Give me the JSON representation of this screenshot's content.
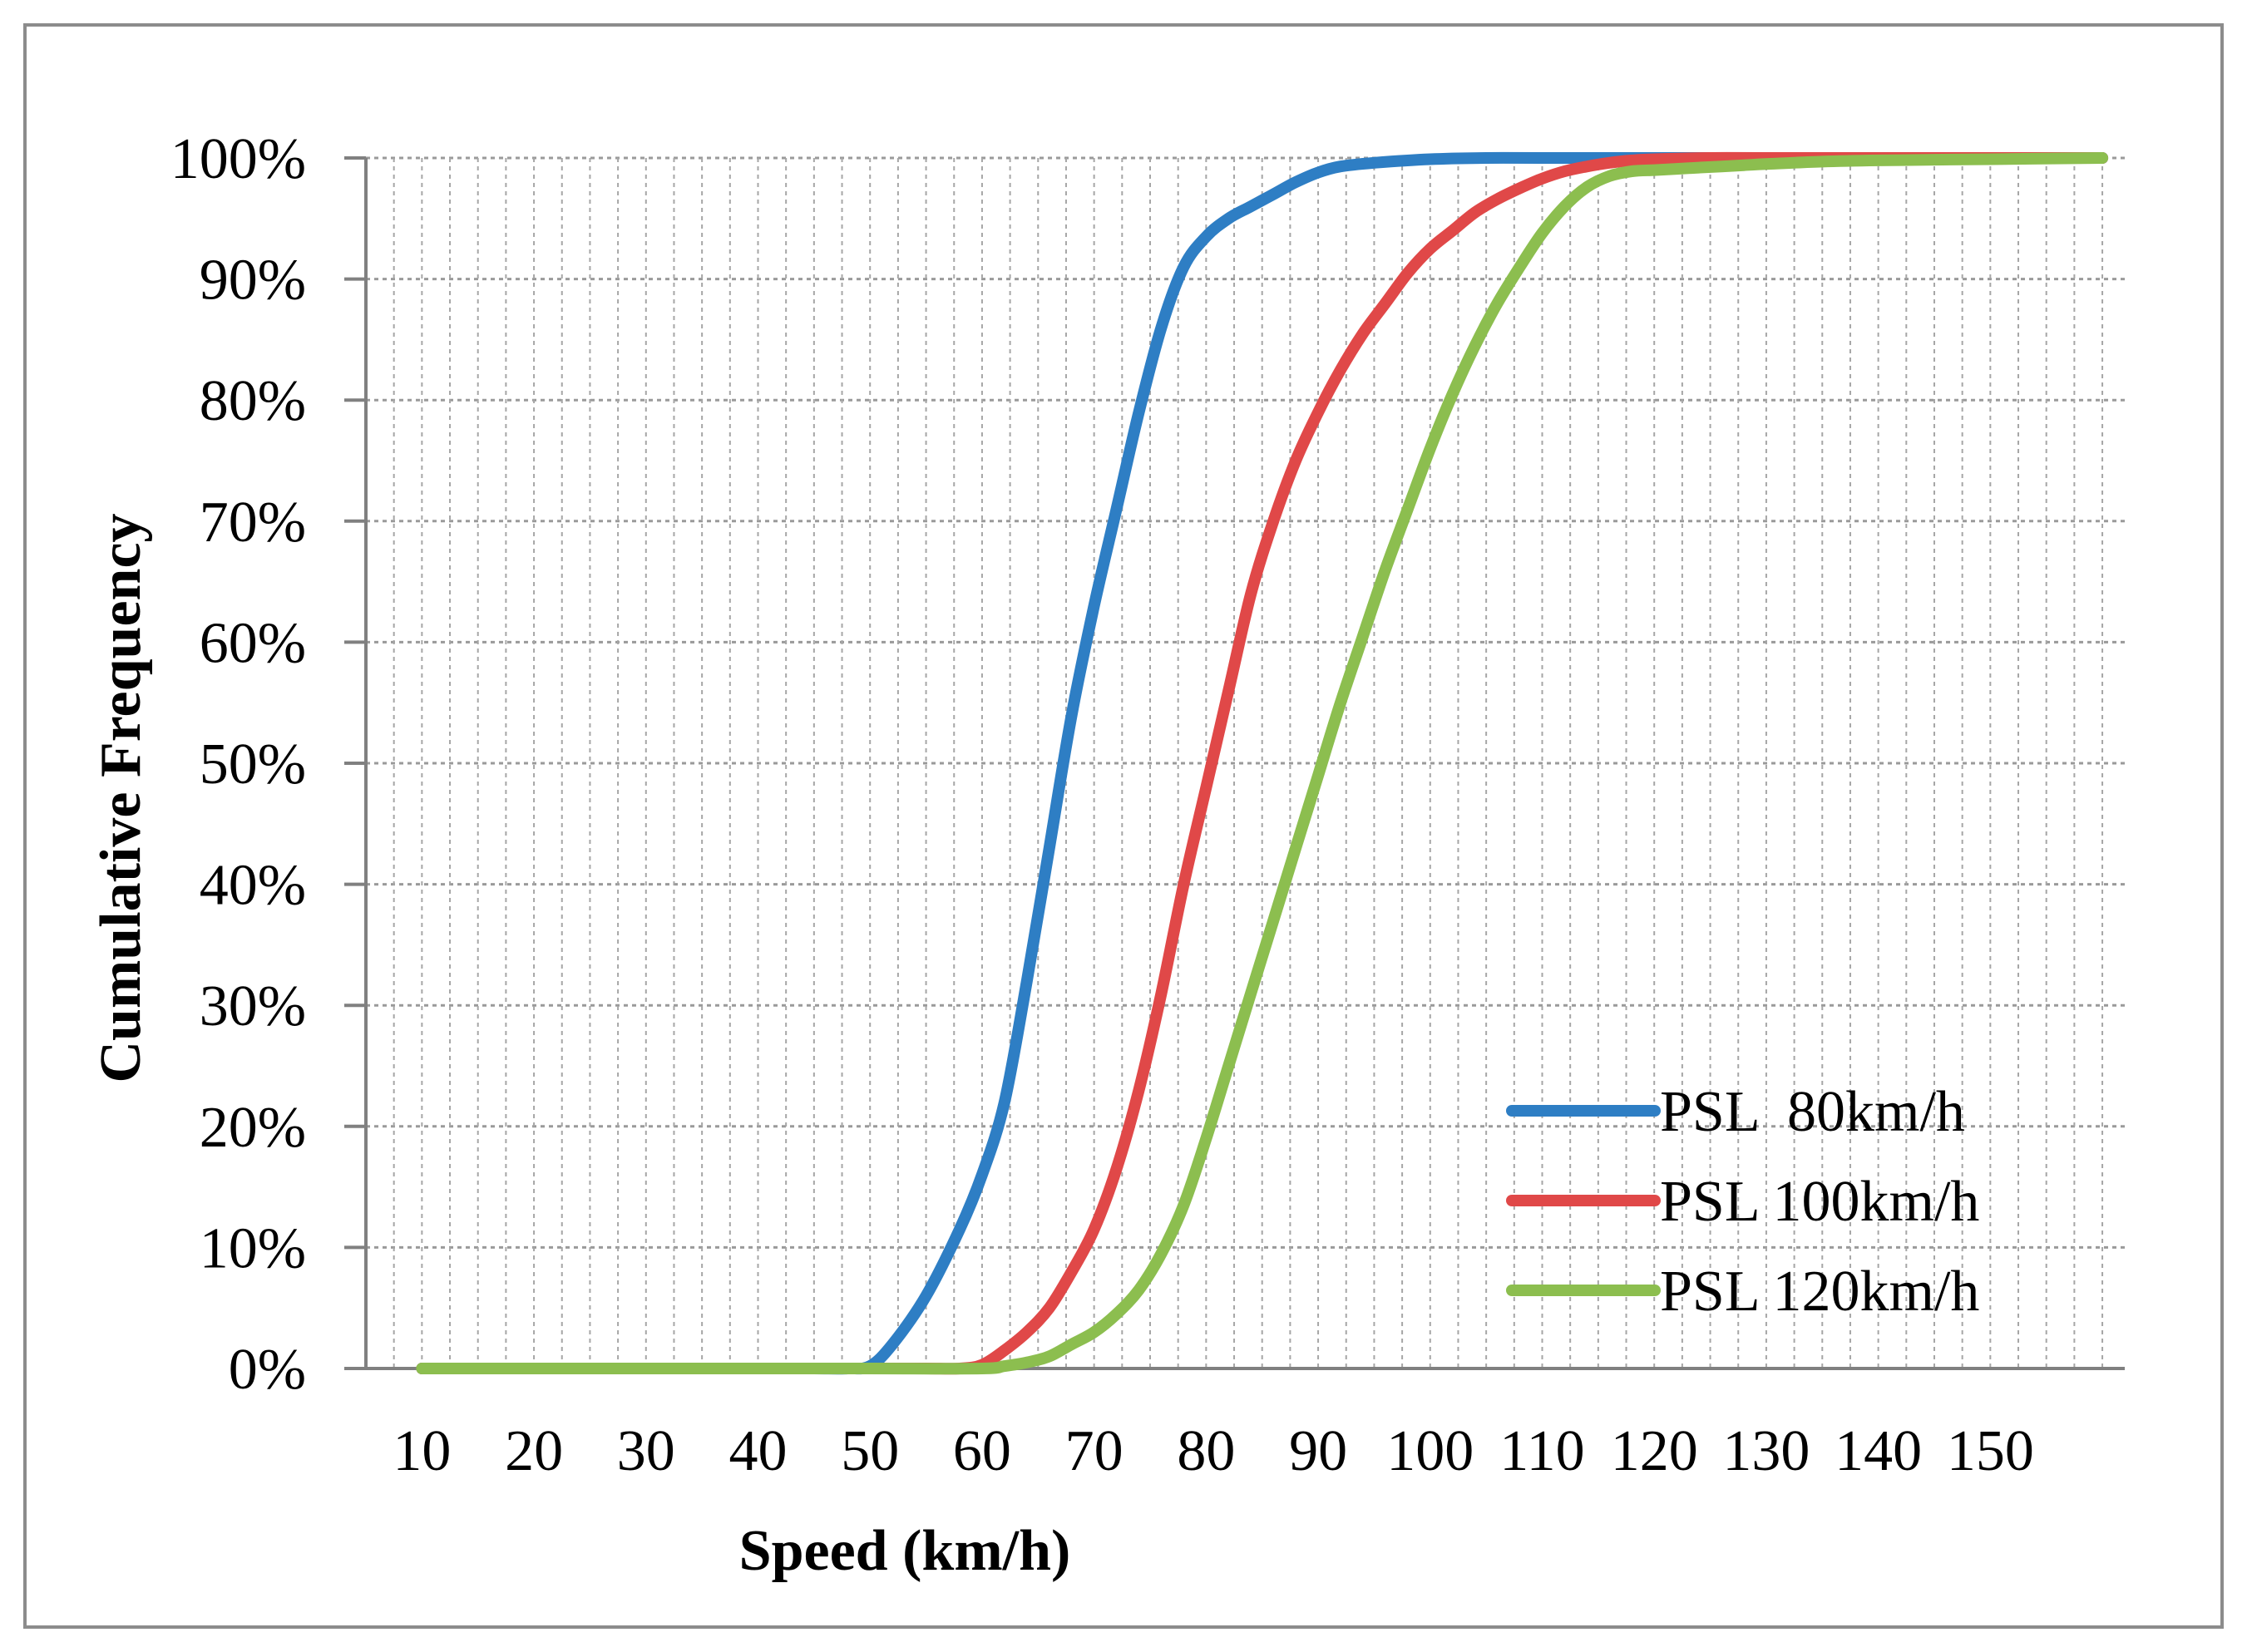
{
  "chart_data": {
    "type": "line",
    "title": "",
    "xlabel": "Speed (km/h)",
    "ylabel": "Cumulative Frequency",
    "x_tick_labels": [
      "10",
      "20",
      "30",
      "40",
      "50",
      "60",
      "70",
      "80",
      "90",
      "100",
      "110",
      "120",
      "130",
      "140",
      "150"
    ],
    "y_tick_labels": [
      "0%",
      "10%",
      "20%",
      "30%",
      "40%",
      "50%",
      "60%",
      "70%",
      "80%",
      "90%",
      "100%"
    ],
    "xlim": [
      5,
      162
    ],
    "ylim": [
      0,
      100
    ],
    "grid": true,
    "legend_position": "bottom-right",
    "series": [
      {
        "name": "PSL  80km/h",
        "color": "#2E7EC4",
        "x": [
          10,
          20,
          30,
          40,
          45,
          48,
          50,
          52,
          55,
          58,
          60,
          62,
          64,
          66,
          68,
          70,
          72,
          74,
          76,
          78,
          80,
          82,
          84,
          86,
          88,
          90,
          92,
          95,
          100,
          105,
          110,
          120,
          130,
          140,
          150,
          160
        ],
        "y": [
          0,
          0,
          0,
          0,
          0,
          0,
          0.2,
          2,
          6,
          11.5,
          16,
          22,
          32,
          43,
          54,
          63,
          71,
          79,
          86,
          91,
          93.5,
          95,
          96,
          97,
          98,
          98.8,
          99.3,
          99.6,
          99.9,
          100,
          100,
          100,
          100,
          100,
          100,
          100
        ]
      },
      {
        "name": "PSL 100km/h",
        "color": "#E04848",
        "x": [
          10,
          20,
          30,
          40,
          50,
          55,
          58,
          60,
          62,
          64,
          66,
          68,
          70,
          72,
          74,
          76,
          78,
          80,
          82,
          84,
          86,
          88,
          90,
          92,
          94,
          96,
          98,
          100,
          102,
          104,
          106,
          108,
          110,
          112,
          114,
          116,
          118,
          120,
          125,
          130,
          140,
          150,
          160
        ],
        "y": [
          0,
          0,
          0,
          0,
          0,
          0,
          0,
          0.3,
          1.5,
          3,
          5,
          8,
          11.5,
          16.5,
          23,
          31,
          40,
          48,
          56,
          64,
          70,
          75,
          79,
          82.5,
          85.5,
          88,
          90.5,
          92.5,
          94,
          95.5,
          96.6,
          97.5,
          98.3,
          98.9,
          99.3,
          99.6,
          99.8,
          99.9,
          100,
          100,
          100,
          100,
          100
        ]
      },
      {
        "name": "PSL 120km/h",
        "color": "#8CBE4F",
        "x": [
          10,
          20,
          30,
          40,
          50,
          60,
          62,
          64,
          66,
          68,
          70,
          72,
          74,
          76,
          78,
          80,
          82,
          84,
          86,
          88,
          90,
          92,
          94,
          96,
          98,
          100,
          102,
          104,
          106,
          108,
          110,
          112,
          114,
          116,
          118,
          120,
          122,
          124,
          126,
          128,
          130,
          135,
          140,
          150,
          160
        ],
        "y": [
          0,
          0,
          0,
          0,
          0,
          0,
          0.2,
          0.5,
          1,
          2,
          3,
          4.5,
          6.5,
          9.5,
          13.5,
          19,
          25,
          31,
          37,
          43,
          49,
          55,
          60.5,
          66,
          71,
          76,
          80.5,
          84.5,
          88,
          91,
          93.8,
          96,
          97.6,
          98.5,
          98.9,
          99,
          99.1,
          99.2,
          99.3,
          99.4,
          99.5,
          99.7,
          99.8,
          99.9,
          100
        ]
      }
    ]
  }
}
